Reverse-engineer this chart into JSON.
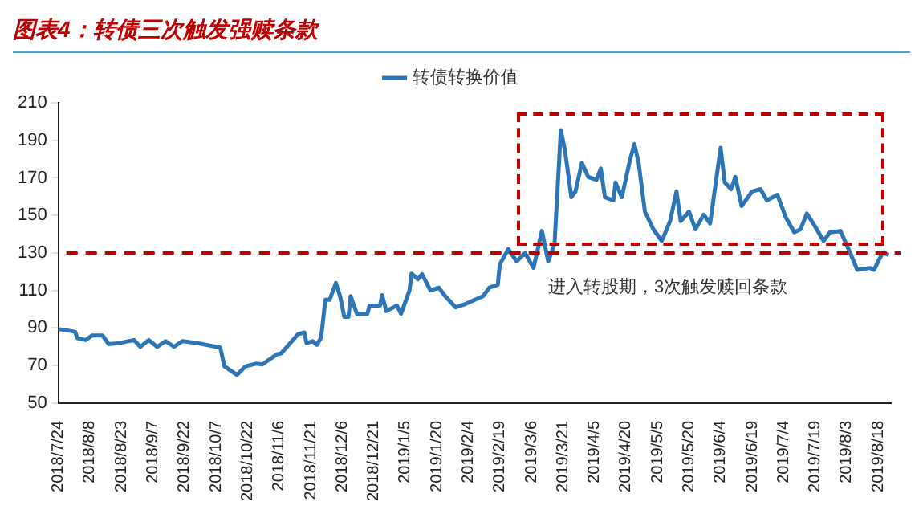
{
  "chart_data": {
    "type": "line",
    "title": "图表4：转债三次触发强赎条款",
    "annotations": [
      "进入转股期，3次触发赎回条款"
    ],
    "x": [
      "2018-07-24",
      "2018-08-01",
      "2018-08-02",
      "2018-08-06",
      "2018-08-09",
      "2018-08-14",
      "2018-08-17",
      "2018-08-22",
      "2018-08-29",
      "2018-09-01",
      "2018-09-05",
      "2018-09-09",
      "2018-09-13",
      "2018-09-17",
      "2018-09-21",
      "2018-09-28",
      "2018-10-09",
      "2018-10-11",
      "2018-10-17",
      "2018-10-21",
      "2018-10-26",
      "2018-10-29",
      "2018-11-05",
      "2018-11-07",
      "2018-11-15",
      "2018-11-18",
      "2018-11-19",
      "2018-11-22",
      "2018-11-24",
      "2018-11-26",
      "2018-11-28",
      "2018-11-30",
      "2018-12-03",
      "2018-12-05",
      "2018-12-07",
      "2018-12-09",
      "2018-12-10",
      "2018-12-13",
      "2018-12-18",
      "2018-12-19",
      "2018-12-24",
      "2018-12-25",
      "2018-12-27",
      "2019-01-01",
      "2019-01-03",
      "2019-01-07",
      "2019-01-08",
      "2019-01-11",
      "2019-01-13",
      "2019-01-17",
      "2019-01-21",
      "2019-01-24",
      "2019-01-29",
      "2019-02-03",
      "2019-02-11",
      "2019-02-14",
      "2019-02-18",
      "2019-02-19",
      "2019-02-23",
      "2019-02-27",
      "2019-03-03",
      "2019-03-07",
      "2019-03-11",
      "2019-03-14",
      "2019-03-17",
      "2019-03-20",
      "2019-03-22",
      "2019-03-25",
      "2019-03-27",
      "2019-03-30",
      "2019-04-02",
      "2019-04-06",
      "2019-04-08",
      "2019-04-10",
      "2019-04-14",
      "2019-04-15",
      "2019-04-18",
      "2019-04-22",
      "2019-04-24",
      "2019-04-26",
      "2019-04-29",
      "2019-05-03",
      "2019-05-07",
      "2019-05-11",
      "2019-05-14",
      "2019-05-16",
      "2019-05-20",
      "2019-05-23",
      "2019-05-27",
      "2019-05-30",
      "2019-06-04",
      "2019-06-06",
      "2019-06-09",
      "2019-06-11",
      "2019-06-14",
      "2019-06-19",
      "2019-06-23",
      "2019-06-26",
      "2019-07-01",
      "2019-07-05",
      "2019-07-09",
      "2019-07-12",
      "2019-07-15",
      "2019-07-19",
      "2019-07-23",
      "2019-07-26",
      "2019-07-31",
      "2019-08-04",
      "2019-08-08",
      "2019-08-14",
      "2019-08-16",
      "2019-08-20",
      "2019-08-23"
    ],
    "series": [
      {
        "name": "转债转换价值",
        "color": "#2e75b6",
        "values": [
          89.5,
          88,
          84.6,
          83.6,
          86,
          86,
          81.4,
          82,
          83.6,
          80,
          83.6,
          80,
          83,
          80,
          83,
          82,
          79.6,
          69.6,
          65,
          69.6,
          71,
          70.6,
          76,
          76.5,
          86.7,
          87.6,
          82,
          83,
          81,
          85,
          105,
          105,
          114,
          107,
          96,
          96,
          107,
          97.6,
          97.6,
          102,
          102,
          107.5,
          99,
          102,
          97.6,
          110,
          119,
          116,
          118.7,
          110,
          111.5,
          107,
          101,
          103,
          107,
          111.5,
          113,
          124,
          132,
          125.5,
          130,
          122,
          141.7,
          125.5,
          134.8,
          195.4,
          184.5,
          159.7,
          162.8,
          178,
          170.5,
          169,
          175,
          159.7,
          158,
          167.5,
          159.7,
          180,
          188,
          178,
          152,
          142.6,
          136.4,
          147,
          162.8,
          147,
          152,
          142.6,
          150.4,
          145.7,
          186,
          167.5,
          164,
          170.5,
          155,
          162.8,
          164,
          158,
          161,
          149,
          141,
          142.6,
          151,
          144,
          136.4,
          141,
          141.7,
          131.7,
          121,
          122,
          121,
          130,
          129
        ]
      }
    ],
    "xlim": [
      "2018-07-24",
      "2019-08-24"
    ],
    "xticks": [
      {
        "value": "2018-07-24",
        "label": "2018/7/24"
      },
      {
        "value": "2018-08-08",
        "label": "2018/8/8"
      },
      {
        "value": "2018-08-23",
        "label": "2018/8/23"
      },
      {
        "value": "2018-09-07",
        "label": "2018/9/7"
      },
      {
        "value": "2018-09-22",
        "label": "2018/9/22"
      },
      {
        "value": "2018-10-07",
        "label": "2018/10/7"
      },
      {
        "value": "2018-10-22",
        "label": "2018/10/22"
      },
      {
        "value": "2018-11-06",
        "label": "2018/11/6"
      },
      {
        "value": "2018-11-21",
        "label": "2018/11/21"
      },
      {
        "value": "2018-12-06",
        "label": "2018/12/6"
      },
      {
        "value": "2018-12-21",
        "label": "2018/12/21"
      },
      {
        "value": "2019-01-05",
        "label": "2019/1/5"
      },
      {
        "value": "2019-01-20",
        "label": "2019/1/20"
      },
      {
        "value": "2019-02-04",
        "label": "2019/2/4"
      },
      {
        "value": "2019-02-19",
        "label": "2019/2/19"
      },
      {
        "value": "2019-03-06",
        "label": "2019/3/6"
      },
      {
        "value": "2019-03-21",
        "label": "2019/3/21"
      },
      {
        "value": "2019-04-05",
        "label": "2019/4/5"
      },
      {
        "value": "2019-04-20",
        "label": "2019/4/20"
      },
      {
        "value": "2019-05-05",
        "label": "2019/5/5"
      },
      {
        "value": "2019-05-20",
        "label": "2019/5/20"
      },
      {
        "value": "2019-06-04",
        "label": "2019/6/4"
      },
      {
        "value": "2019-06-19",
        "label": "2019/6/19"
      },
      {
        "value": "2019-07-04",
        "label": "2019/7/4"
      },
      {
        "value": "2019-07-19",
        "label": "2019/7/19"
      },
      {
        "value": "2019-08-03",
        "label": "2019/8/3"
      },
      {
        "value": "2019-08-18",
        "label": "2019/8/18"
      }
    ],
    "ylim": [
      50,
      210
    ],
    "yticks": [
      50,
      70,
      90,
      110,
      130,
      150,
      170,
      190,
      210
    ],
    "ref_lines": [
      {
        "axis": "y",
        "value": 130,
        "color": "#c00000",
        "line_style": "dashed"
      }
    ],
    "grid": false,
    "legend": "top",
    "marker": "none",
    "line_style": "solid"
  }
}
